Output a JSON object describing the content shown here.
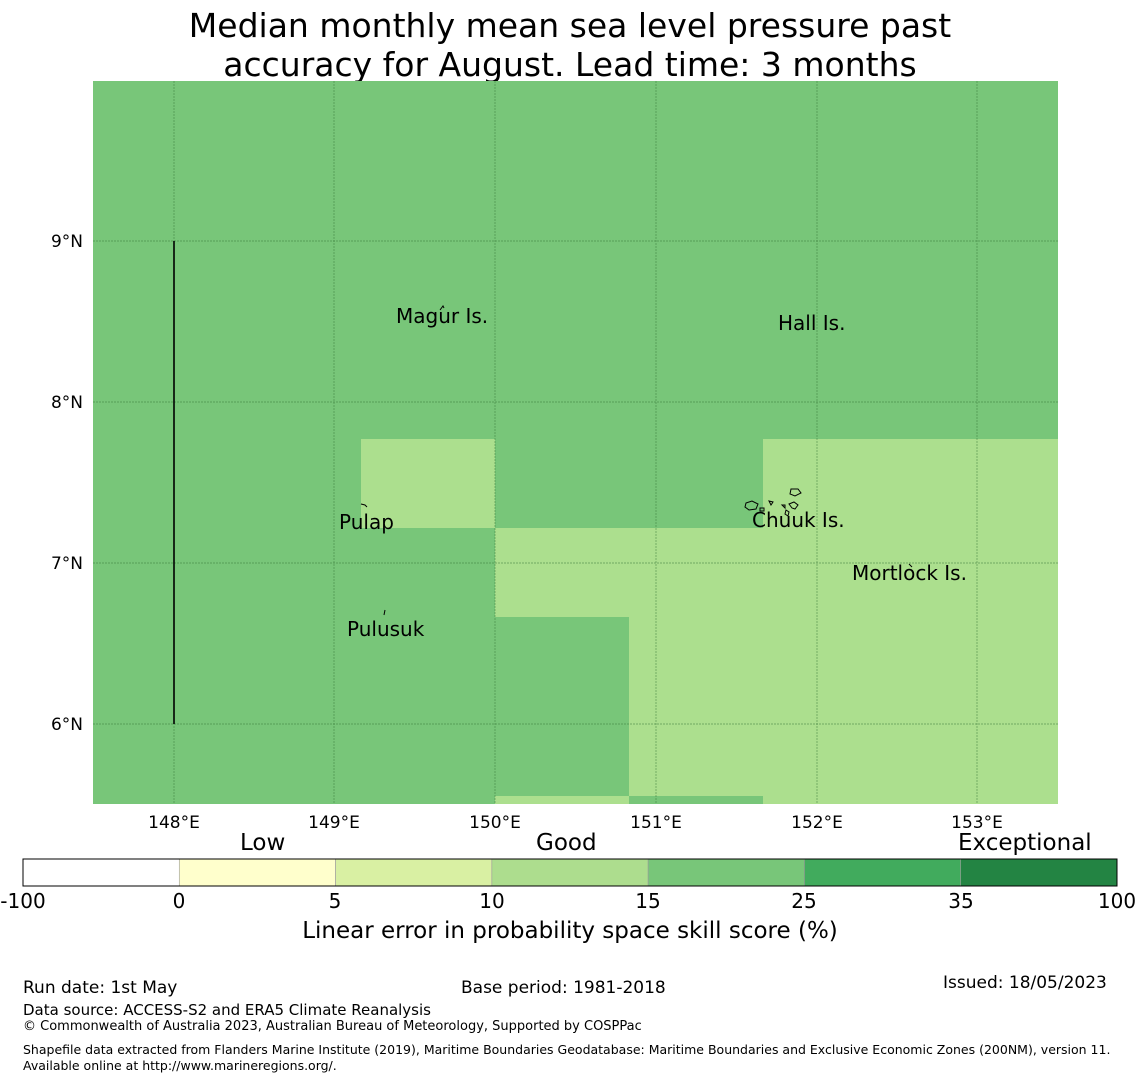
{
  "title": {
    "line1": "Median monthly mean sea level pressure past",
    "line2": "accuracy for August. Lead time: 3 months"
  },
  "map": {
    "lon_ticks": [
      "148°E",
      "149°E",
      "150°E",
      "151°E",
      "152°E",
      "153°E"
    ],
    "lat_ticks": [
      "9°N",
      "8°N",
      "7°N",
      "6°N"
    ],
    "places": [
      "Magur Is.",
      "Hall Is.",
      "Pulap",
      "Chuuk Is.",
      "Mortlock Is.",
      "Pulusuk"
    ],
    "colors": {
      "good_10_15": "#acdf8e",
      "good_15_25": "#78c679"
    }
  },
  "colorbar": {
    "categories": [
      "Low",
      "Good",
      "Exceptional"
    ],
    "tick_labels": [
      "-100",
      "0",
      "5",
      "10",
      "15",
      "25",
      "35",
      "100"
    ],
    "colors": [
      "#ffffff",
      "#ffffcc",
      "#d9f0a3",
      "#addd8e",
      "#78c679",
      "#41ab5d",
      "#238443"
    ],
    "label": "Linear error in probability space skill score (%)"
  },
  "footer": {
    "run_date": "Run date: 1st May",
    "base_period": "Base period: 1981-2018",
    "issued": "Issued: 18/05/2023",
    "data_source": "Data source: ACCESS-S2 and ERA5 Climate Reanalysis",
    "copyright": "© Commonwealth of Australia 2023, Australian Bureau of Meteorology, Supported by COSPPac",
    "shapefile": "Shapefile data extracted from Flanders Marine Institute (2019), Maritime Boundaries Geodatabase: Maritime Boundaries and Exclusive Economic Zones (200NM), version 11. Available online at http://www.marineregions.org/."
  }
}
